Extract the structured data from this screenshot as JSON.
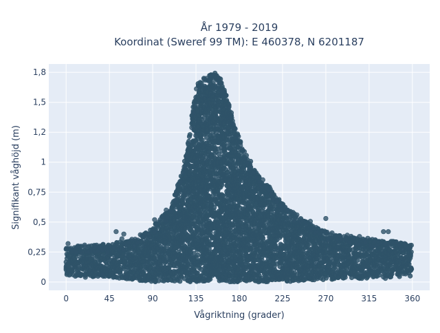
{
  "chart_data": {
    "type": "scatter",
    "title_line1": "År 1979 - 2019",
    "title_line2": "Koordinat (Sweref 99 TM): E 460378, N 6201187",
    "xlabel": "Vågriktning (grader)",
    "ylabel": "Signifikant våghöjd (m)",
    "xlim": [
      -18,
      378
    ],
    "ylim": [
      -0.07,
      1.82
    ],
    "grid": true,
    "marker_color": "#2f5369",
    "background_color": "#e5ecf6",
    "x_ticks": [
      {
        "value": 0,
        "label": "0"
      },
      {
        "value": 45,
        "label": "45"
      },
      {
        "value": 90,
        "label": "90"
      },
      {
        "value": 135,
        "label": "135"
      },
      {
        "value": 180,
        "label": "180"
      },
      {
        "value": 225,
        "label": "225"
      },
      {
        "value": 270,
        "label": "270"
      },
      {
        "value": 315,
        "label": "315"
      },
      {
        "value": 360,
        "label": "360"
      }
    ],
    "y_ticks": [
      {
        "value": 0,
        "label": "0"
      },
      {
        "value": 0.25,
        "label": "0,25"
      },
      {
        "value": 0.5,
        "label": "0,5"
      },
      {
        "value": 0.75,
        "label": "0,75"
      },
      {
        "value": 1,
        "label": "1"
      },
      {
        "value": 1.25,
        "label": "1,2"
      },
      {
        "value": 1.5,
        "label": "1,5"
      },
      {
        "value": 1.75,
        "label": "1,8"
      }
    ],
    "upper_envelope": {
      "x": [
        0,
        20,
        45,
        70,
        90,
        110,
        120,
        128,
        133,
        137,
        145,
        150,
        155,
        160,
        167,
        175,
        182,
        195,
        210,
        225,
        240,
        255,
        270,
        290,
        315,
        340,
        360
      ],
      "y": [
        0.3,
        0.3,
        0.32,
        0.35,
        0.45,
        0.65,
        0.9,
        1.2,
        1.5,
        1.65,
        1.72,
        1.74,
        1.75,
        1.7,
        1.55,
        1.32,
        1.15,
        0.95,
        0.8,
        0.65,
        0.55,
        0.48,
        0.42,
        0.38,
        0.36,
        0.34,
        0.3
      ]
    },
    "lower_envelope": {
      "x": [
        0,
        45,
        70,
        90,
        110,
        130,
        150,
        180,
        225,
        270,
        315,
        360
      ],
      "y": [
        0.05,
        0.04,
        0.02,
        0.0,
        0.0,
        0.0,
        0.0,
        0.0,
        0.0,
        0.02,
        0.03,
        0.05
      ]
    },
    "outliers": [
      {
        "x": 2,
        "y": 0.32
      },
      {
        "x": 30,
        "y": 0.3
      },
      {
        "x": 52,
        "y": 0.42
      },
      {
        "x": 58,
        "y": 0.36
      },
      {
        "x": 60,
        "y": 0.4
      },
      {
        "x": 92,
        "y": 0.52
      },
      {
        "x": 104,
        "y": 0.6
      },
      {
        "x": 240,
        "y": 0.56
      },
      {
        "x": 270,
        "y": 0.53
      },
      {
        "x": 305,
        "y": 0.38
      },
      {
        "x": 330,
        "y": 0.42
      },
      {
        "x": 335,
        "y": 0.42
      },
      {
        "x": 352,
        "y": 0.32
      },
      {
        "x": 38,
        "y": 0.06
      },
      {
        "x": 63,
        "y": 0.04
      },
      {
        "x": 20,
        "y": 0.04
      },
      {
        "x": 290,
        "y": 0.06
      },
      {
        "x": 332,
        "y": 0.03
      }
    ]
  }
}
